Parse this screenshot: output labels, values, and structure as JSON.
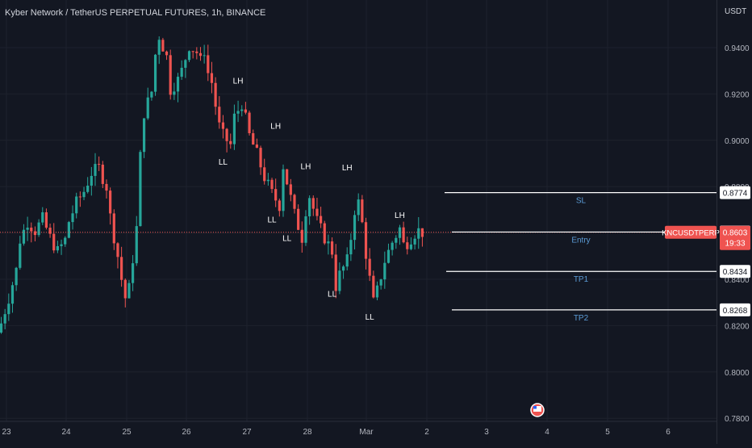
{
  "header": {
    "title": "Kyber Network / TetherUS PERPETUAL FUTURES, 1h, BINANCE",
    "currency": "USDT"
  },
  "colors": {
    "background": "#131722",
    "grid": "#1e222d",
    "up": "#26a69a",
    "down": "#ef5350",
    "level_line": "#ffffff",
    "level_text": "#5b9bd5",
    "tag_bg": "#ffffff",
    "tag_text": "#131722",
    "symbol_tag_bg": "#ef5350",
    "symbol_tag_text": "#ffffff",
    "annotation_text": "#ffffff"
  },
  "chart_data": {
    "type": "candlestick",
    "ylim": [
      0.776,
      0.9762
    ],
    "y_ticks": [
      "0.9400",
      "0.9200",
      "0.9000",
      "0.8800",
      "0.8600",
      "0.8400",
      "0.8200",
      "0.8000",
      "0.7800"
    ],
    "x_ticks": [
      "23",
      "24",
      "25",
      "26",
      "27",
      "28",
      "Mar",
      "2",
      "3",
      "4",
      "5",
      "6"
    ],
    "grid": true,
    "close_path": [
      [
        0,
        0.821
      ],
      [
        2,
        0.832
      ],
      [
        4,
        0.844
      ],
      [
        5,
        0.857
      ],
      [
        7,
        0.865
      ],
      [
        9,
        0.861
      ],
      [
        11,
        0.866
      ],
      [
        13,
        0.858
      ],
      [
        15,
        0.852
      ],
      [
        17,
        0.857
      ],
      [
        18,
        0.865
      ],
      [
        20,
        0.873
      ],
      [
        22,
        0.878
      ],
      [
        24,
        0.886
      ],
      [
        26,
        0.888
      ],
      [
        28,
        0.88
      ],
      [
        29,
        0.867
      ],
      [
        31,
        0.85
      ],
      [
        32,
        0.84
      ],
      [
        33,
        0.832
      ],
      [
        34,
        0.836
      ],
      [
        36,
        0.862
      ],
      [
        37,
        0.893
      ],
      [
        38,
        0.912
      ],
      [
        40,
        0.921
      ],
      [
        41,
        0.937
      ],
      [
        42,
        0.945
      ],
      [
        44,
        0.936
      ],
      [
        45,
        0.922
      ],
      [
        47,
        0.926
      ],
      [
        48,
        0.93
      ],
      [
        50,
        0.941
      ],
      [
        52,
        0.938
      ],
      [
        53,
        0.934
      ],
      [
        54,
        0.939
      ],
      [
        55,
        0.929
      ],
      [
        56,
        0.925
      ],
      [
        57,
        0.915
      ],
      [
        58,
        0.906
      ],
      [
        59,
        0.902
      ],
      [
        61,
        0.898
      ],
      [
        62,
        0.91
      ],
      [
        64,
        0.916
      ],
      [
        66,
        0.902
      ],
      [
        68,
        0.894
      ],
      [
        70,
        0.884
      ],
      [
        72,
        0.877
      ],
      [
        74,
        0.872
      ],
      [
        75,
        0.889
      ],
      [
        76,
        0.882
      ],
      [
        78,
        0.868
      ],
      [
        80,
        0.858
      ],
      [
        81,
        0.87
      ],
      [
        82,
        0.876
      ],
      [
        84,
        0.865
      ],
      [
        86,
        0.858
      ],
      [
        88,
        0.852
      ],
      [
        89,
        0.837
      ],
      [
        90,
        0.842
      ],
      [
        92,
        0.848
      ],
      [
        93,
        0.858
      ],
      [
        94,
        0.87
      ],
      [
        95,
        0.873
      ],
      [
        96,
        0.864
      ],
      [
        97,
        0.851
      ],
      [
        98,
        0.84
      ],
      [
        99,
        0.83
      ],
      [
        100,
        0.835
      ],
      [
        102,
        0.848
      ],
      [
        104,
        0.856
      ],
      [
        106,
        0.862
      ],
      [
        107,
        0.855
      ],
      [
        108,
        0.856
      ],
      [
        110,
        0.86
      ],
      [
        111,
        0.861
      ],
      [
        112,
        0.8603
      ]
    ],
    "annotations": [
      {
        "label": "LH",
        "x": 63,
        "y": 0.9245
      },
      {
        "label": "LL",
        "x": 59,
        "y": 0.8895
      },
      {
        "label": "LH",
        "x": 73,
        "y": 0.905
      },
      {
        "label": "LL",
        "x": 72,
        "y": 0.8645
      },
      {
        "label": "LH",
        "x": 81,
        "y": 0.8875
      },
      {
        "label": "LL",
        "x": 76,
        "y": 0.8565
      },
      {
        "label": "LH",
        "x": 92,
        "y": 0.887
      },
      {
        "label": "LL",
        "x": 88,
        "y": 0.8325
      },
      {
        "label": "LH",
        "x": 106,
        "y": 0.8665
      },
      {
        "label": "LL",
        "x": 98,
        "y": 0.8225
      }
    ],
    "levels": [
      {
        "name": "SL",
        "value": 0.8774,
        "tag": "0.8774"
      },
      {
        "name": "Entry",
        "value": 0.8604,
        "tag": "0.8604"
      },
      {
        "name": "TP1",
        "value": 0.8434,
        "tag": "0.8434"
      },
      {
        "name": "TP2",
        "value": 0.8268,
        "tag": "0.8268"
      }
    ],
    "last_price": {
      "symbol": "KNCUSDTPERP",
      "value": "0.8603",
      "countdown": "19:33"
    }
  }
}
